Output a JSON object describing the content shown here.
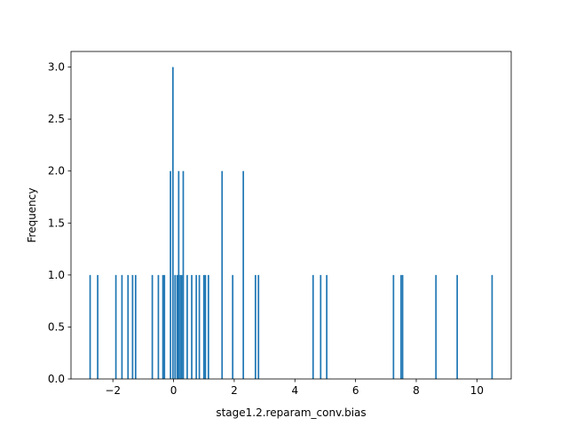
{
  "chart_data": {
    "type": "bar",
    "title": "",
    "xlabel": "stage1.2.reparam_conv.bias",
    "ylabel": "Frequency",
    "xlim": [
      -3.38,
      11.13
    ],
    "ylim": [
      0,
      3.15
    ],
    "xticks": [
      -2,
      0,
      2,
      4,
      6,
      8,
      10
    ],
    "xtick_labels": [
      "−2",
      "0",
      "2",
      "4",
      "6",
      "8",
      "10"
    ],
    "yticks": [
      0.0,
      0.5,
      1.0,
      1.5,
      2.0,
      2.5,
      3.0
    ],
    "ytick_labels": [
      "0.0",
      "0.5",
      "1.0",
      "1.5",
      "2.0",
      "2.5",
      "3.0"
    ],
    "grid": false,
    "bar_color": "#1f77b4",
    "bin_width": 0.05,
    "bars": [
      {
        "x": -2.75,
        "count": 1
      },
      {
        "x": -2.5,
        "count": 1
      },
      {
        "x": -1.9,
        "count": 1
      },
      {
        "x": -1.7,
        "count": 1
      },
      {
        "x": -1.5,
        "count": 1
      },
      {
        "x": -1.35,
        "count": 1
      },
      {
        "x": -1.25,
        "count": 1
      },
      {
        "x": -0.7,
        "count": 1
      },
      {
        "x": -0.5,
        "count": 1
      },
      {
        "x": -0.35,
        "count": 1
      },
      {
        "x": -0.3,
        "count": 1
      },
      {
        "x": -0.1,
        "count": 2
      },
      {
        "x": -0.02,
        "count": 3
      },
      {
        "x": 0.05,
        "count": 1
      },
      {
        "x": 0.12,
        "count": 1
      },
      {
        "x": 0.17,
        "count": 2
      },
      {
        "x": 0.22,
        "count": 1
      },
      {
        "x": 0.27,
        "count": 1
      },
      {
        "x": 0.32,
        "count": 2
      },
      {
        "x": 0.45,
        "count": 1
      },
      {
        "x": 0.6,
        "count": 1
      },
      {
        "x": 0.75,
        "count": 1
      },
      {
        "x": 0.85,
        "count": 1
      },
      {
        "x": 1.0,
        "count": 1
      },
      {
        "x": 1.05,
        "count": 1
      },
      {
        "x": 1.15,
        "count": 1
      },
      {
        "x": 1.6,
        "count": 2
      },
      {
        "x": 1.95,
        "count": 1
      },
      {
        "x": 2.3,
        "count": 2
      },
      {
        "x": 2.7,
        "count": 1
      },
      {
        "x": 2.8,
        "count": 1
      },
      {
        "x": 4.6,
        "count": 1
      },
      {
        "x": 4.85,
        "count": 1
      },
      {
        "x": 5.05,
        "count": 1
      },
      {
        "x": 7.25,
        "count": 1
      },
      {
        "x": 7.5,
        "count": 1
      },
      {
        "x": 7.55,
        "count": 1
      },
      {
        "x": 8.65,
        "count": 1
      },
      {
        "x": 9.35,
        "count": 1
      },
      {
        "x": 10.5,
        "count": 1
      }
    ]
  }
}
